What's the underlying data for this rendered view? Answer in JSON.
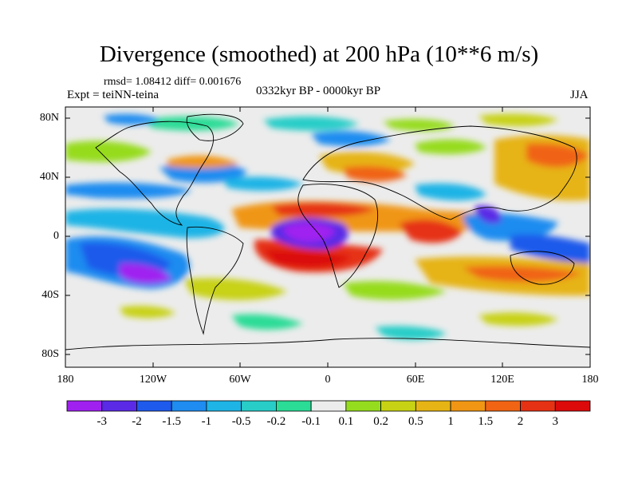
{
  "header": {
    "title": "Divergence (smoothed) at 200 hPa (10**6 m/s)",
    "stats": "rmsd= 1.08412  diff= 0.001676",
    "experiment": "Expt = teiNN-teina",
    "period": "0332kyr BP - 0000kyr BP",
    "season": "JJA"
  },
  "axes": {
    "lat_labels": [
      "80N",
      "40N",
      "0",
      "40S",
      "80S"
    ],
    "lon_labels": [
      "180",
      "120W",
      "60W",
      "0",
      "60E",
      "120E",
      "180"
    ]
  },
  "colorbar": {
    "labels": [
      "-3",
      "-2",
      "-1.5",
      "-1",
      "-0.5",
      "-0.2",
      "-0.1",
      "0.1",
      "0.2",
      "0.5",
      "1",
      "1.5",
      "2",
      "3"
    ],
    "colors": [
      "#a020f0",
      "#5a2ae6",
      "#1e5aeb",
      "#1e8cf0",
      "#1eb4e6",
      "#28cdc8",
      "#2adc96",
      "#ececec",
      "#96dc1e",
      "#c8d214",
      "#e6b414",
      "#f09614",
      "#f06414",
      "#e63214",
      "#dc0a0a"
    ]
  }
}
